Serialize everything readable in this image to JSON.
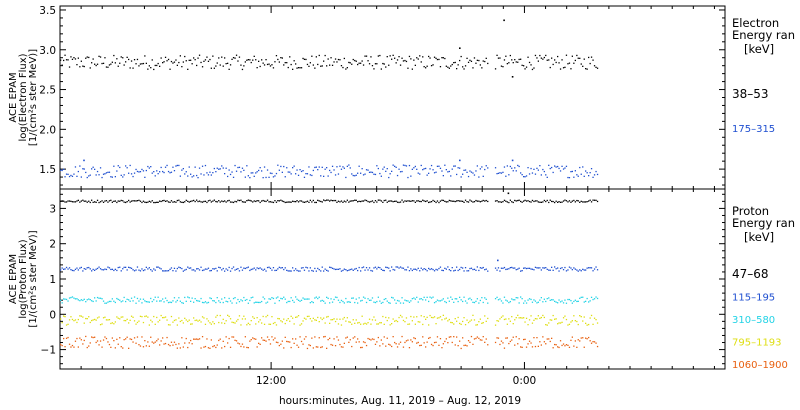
{
  "chart_data": [
    {
      "type": "scatter",
      "panel": "electron",
      "ylabel_lines": [
        "ACE EPAM",
        "log(Electron Flux)",
        "[1/(cm²s ster MeV)]"
      ],
      "ylim": [
        1.25,
        3.55
      ],
      "yticks": [
        1.5,
        2.0,
        2.5,
        3.0,
        3.5
      ],
      "ytick_labels": [
        "1.5",
        "2.0",
        "2.5",
        "3.0",
        "3.5"
      ],
      "legend": {
        "title_lines": [
          "Electron",
          "Energy ran"
        ],
        "unit": "[keV]",
        "entries": [
          {
            "label": "38–53",
            "color": "#000000"
          },
          {
            "label": "175–315",
            "color": "#1f4fd0"
          }
        ]
      },
      "series": [
        {
          "name": "38–53",
          "color": "#000000",
          "level": 2.85,
          "noise": 0.09,
          "spikes": [
            [
              23.0,
              3.38
            ],
            [
              20.9,
              3.03
            ],
            [
              23.4,
              2.67
            ]
          ]
        },
        {
          "name": "175–315",
          "color": "#1f4fd0",
          "level": 1.48,
          "noise": 0.08,
          "spikes": [
            [
              3.1,
              1.62
            ],
            [
              20.9,
              1.62
            ],
            [
              23.4,
              1.62
            ]
          ]
        }
      ]
    },
    {
      "type": "scatter",
      "panel": "proton",
      "ylabel_lines": [
        "ACE EPAM",
        "log(Proton Flux)",
        "[1/(cm²s ster MeV)]"
      ],
      "ylim": [
        -1.55,
        3.55
      ],
      "yticks": [
        -1,
        0,
        1,
        2,
        3
      ],
      "ytick_labels": [
        "−1",
        "0",
        "1",
        "2",
        "3"
      ],
      "legend": {
        "title_lines": [
          "Proton",
          "Energy ran"
        ],
        "unit": "[keV]",
        "entries": [
          {
            "label": "47–68",
            "color": "#000000"
          },
          {
            "label": "115–195",
            "color": "#1f4fd0"
          },
          {
            "label": "310–580",
            "color": "#22d3e6"
          },
          {
            "label": "795–1193",
            "color": "#dede10"
          },
          {
            "label": "1060–1900",
            "color": "#e86010"
          }
        ]
      },
      "series": [
        {
          "name": "47–68",
          "color": "#000000",
          "level": 3.22,
          "noise": 0.035,
          "spikes": [
            [
              23.2,
              3.45
            ]
          ]
        },
        {
          "name": "115–195",
          "color": "#1f4fd0",
          "level": 1.3,
          "noise": 0.06,
          "spikes": [
            [
              22.7,
              1.55
            ]
          ]
        },
        {
          "name": "310–580",
          "color": "#22d3e6",
          "level": 0.42,
          "noise": 0.09,
          "spikes": []
        },
        {
          "name": "795–1193",
          "color": "#dede10",
          "level": -0.15,
          "noise": 0.14,
          "spikes": []
        },
        {
          "name": "1060–1900",
          "color": "#e86010",
          "level": -0.78,
          "noise": 0.17,
          "spikes": []
        }
      ]
    }
  ],
  "time_axis": {
    "xlabel": "hours:minutes, Aug. 11, 2019 – Aug. 12, 2019",
    "start_hour": 2,
    "end_hour": 33.5,
    "label_ticks": [
      {
        "hour": 12,
        "label": "12:00"
      },
      {
        "hour": 24,
        "label": "0:00"
      }
    ],
    "data_segments": [
      [
        2,
        22.3
      ],
      [
        22.6,
        27.5
      ]
    ]
  }
}
